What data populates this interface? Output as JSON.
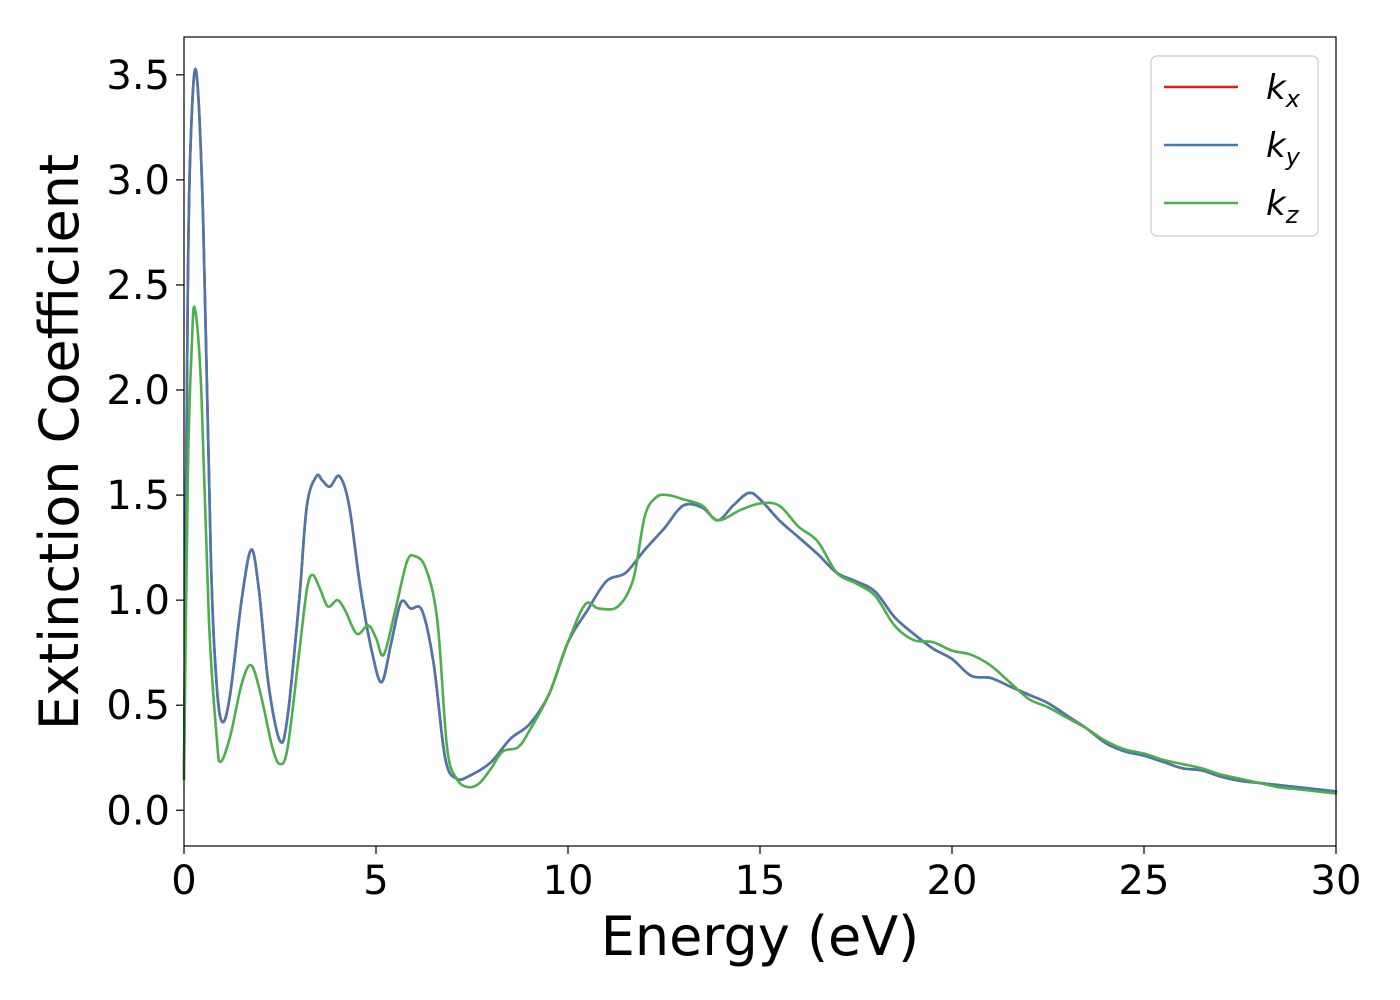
{
  "chart_data": {
    "type": "line",
    "xlabel": "Energy (eV)",
    "ylabel": "Extinction Coefficient",
    "xlim": [
      0,
      30
    ],
    "ylim": [
      -0.17,
      3.68
    ],
    "xticks": [
      0,
      5,
      10,
      15,
      20,
      25,
      30
    ],
    "xtick_labels": [
      "0",
      "5",
      "10",
      "15",
      "20",
      "25",
      "30"
    ],
    "yticks": [
      0.0,
      0.5,
      1.0,
      1.5,
      2.0,
      2.5,
      3.0,
      3.5
    ],
    "ytick_labels": [
      "0.0",
      "0.5",
      "1.0",
      "1.5",
      "2.0",
      "2.5",
      "3.0",
      "3.5"
    ],
    "grid": false,
    "legend_position": "top-right",
    "series": [
      {
        "name": "k",
        "subscript": "x",
        "color": "#e41a1c",
        "points": [
          [
            0,
            0.15
          ],
          [
            0.1,
            2.5
          ],
          [
            0.2,
            3.3
          ],
          [
            0.33,
            3.5
          ],
          [
            0.5,
            2.8
          ],
          [
            0.7,
            1.2
          ],
          [
            0.85,
            0.6
          ],
          [
            1.0,
            0.42
          ],
          [
            1.2,
            0.55
          ],
          [
            1.5,
            1.0
          ],
          [
            1.75,
            1.24
          ],
          [
            1.95,
            1.05
          ],
          [
            2.2,
            0.6
          ],
          [
            2.5,
            0.33
          ],
          [
            2.7,
            0.45
          ],
          [
            3.0,
            1.0
          ],
          [
            3.2,
            1.45
          ],
          [
            3.45,
            1.59
          ],
          [
            3.6,
            1.57
          ],
          [
            3.8,
            1.54
          ],
          [
            4.05,
            1.59
          ],
          [
            4.3,
            1.45
          ],
          [
            4.6,
            1.05
          ],
          [
            4.9,
            0.75
          ],
          [
            5.15,
            0.61
          ],
          [
            5.4,
            0.8
          ],
          [
            5.65,
            0.99
          ],
          [
            5.9,
            0.96
          ],
          [
            6.2,
            0.95
          ],
          [
            6.5,
            0.7
          ],
          [
            6.8,
            0.25
          ],
          [
            7.1,
            0.15
          ],
          [
            7.5,
            0.17
          ],
          [
            8.0,
            0.23
          ],
          [
            8.5,
            0.34
          ],
          [
            9.0,
            0.41
          ],
          [
            9.5,
            0.55
          ],
          [
            10.0,
            0.8
          ],
          [
            10.5,
            0.95
          ],
          [
            11.0,
            1.09
          ],
          [
            11.5,
            1.13
          ],
          [
            12.0,
            1.24
          ],
          [
            12.5,
            1.34
          ],
          [
            13.0,
            1.45
          ],
          [
            13.5,
            1.44
          ],
          [
            13.9,
            1.38
          ],
          [
            14.3,
            1.45
          ],
          [
            14.7,
            1.51
          ],
          [
            15.0,
            1.48
          ],
          [
            15.5,
            1.38
          ],
          [
            16.0,
            1.3
          ],
          [
            16.5,
            1.22
          ],
          [
            17.0,
            1.13
          ],
          [
            17.5,
            1.09
          ],
          [
            18.0,
            1.04
          ],
          [
            18.5,
            0.92
          ],
          [
            19.0,
            0.84
          ],
          [
            19.5,
            0.77
          ],
          [
            20.0,
            0.72
          ],
          [
            20.5,
            0.64
          ],
          [
            21.0,
            0.63
          ],
          [
            21.5,
            0.59
          ],
          [
            22.0,
            0.55
          ],
          [
            22.5,
            0.51
          ],
          [
            23.0,
            0.45
          ],
          [
            23.5,
            0.39
          ],
          [
            24.0,
            0.32
          ],
          [
            24.5,
            0.28
          ],
          [
            25.0,
            0.26
          ],
          [
            25.5,
            0.23
          ],
          [
            26.0,
            0.2
          ],
          [
            26.5,
            0.19
          ],
          [
            27.0,
            0.16
          ],
          [
            27.5,
            0.14
          ],
          [
            28.0,
            0.13
          ],
          [
            28.5,
            0.12
          ],
          [
            29.0,
            0.11
          ],
          [
            29.5,
            0.1
          ],
          [
            30.0,
            0.09
          ]
        ]
      },
      {
        "name": "k",
        "subscript": "y",
        "color": "#4a78ad",
        "points": [
          [
            0,
            0.15
          ],
          [
            0.1,
            2.5
          ],
          [
            0.2,
            3.3
          ],
          [
            0.33,
            3.5
          ],
          [
            0.5,
            2.8
          ],
          [
            0.7,
            1.2
          ],
          [
            0.85,
            0.6
          ],
          [
            1.0,
            0.42
          ],
          [
            1.2,
            0.55
          ],
          [
            1.5,
            1.0
          ],
          [
            1.75,
            1.24
          ],
          [
            1.95,
            1.05
          ],
          [
            2.2,
            0.6
          ],
          [
            2.5,
            0.33
          ],
          [
            2.7,
            0.45
          ],
          [
            3.0,
            1.0
          ],
          [
            3.2,
            1.45
          ],
          [
            3.45,
            1.59
          ],
          [
            3.6,
            1.57
          ],
          [
            3.8,
            1.54
          ],
          [
            4.05,
            1.59
          ],
          [
            4.3,
            1.45
          ],
          [
            4.6,
            1.05
          ],
          [
            4.9,
            0.75
          ],
          [
            5.15,
            0.61
          ],
          [
            5.4,
            0.8
          ],
          [
            5.65,
            0.99
          ],
          [
            5.9,
            0.96
          ],
          [
            6.2,
            0.95
          ],
          [
            6.5,
            0.7
          ],
          [
            6.8,
            0.25
          ],
          [
            7.1,
            0.15
          ],
          [
            7.5,
            0.17
          ],
          [
            8.0,
            0.23
          ],
          [
            8.5,
            0.34
          ],
          [
            9.0,
            0.41
          ],
          [
            9.5,
            0.55
          ],
          [
            10.0,
            0.8
          ],
          [
            10.5,
            0.95
          ],
          [
            11.0,
            1.09
          ],
          [
            11.5,
            1.13
          ],
          [
            12.0,
            1.24
          ],
          [
            12.5,
            1.34
          ],
          [
            13.0,
            1.45
          ],
          [
            13.5,
            1.44
          ],
          [
            13.9,
            1.38
          ],
          [
            14.3,
            1.45
          ],
          [
            14.7,
            1.51
          ],
          [
            15.0,
            1.48
          ],
          [
            15.5,
            1.38
          ],
          [
            16.0,
            1.3
          ],
          [
            16.5,
            1.22
          ],
          [
            17.0,
            1.13
          ],
          [
            17.5,
            1.09
          ],
          [
            18.0,
            1.04
          ],
          [
            18.5,
            0.92
          ],
          [
            19.0,
            0.84
          ],
          [
            19.5,
            0.77
          ],
          [
            20.0,
            0.72
          ],
          [
            20.5,
            0.64
          ],
          [
            21.0,
            0.63
          ],
          [
            21.5,
            0.59
          ],
          [
            22.0,
            0.55
          ],
          [
            22.5,
            0.51
          ],
          [
            23.0,
            0.45
          ],
          [
            23.5,
            0.39
          ],
          [
            24.0,
            0.32
          ],
          [
            24.5,
            0.28
          ],
          [
            25.0,
            0.26
          ],
          [
            25.5,
            0.23
          ],
          [
            26.0,
            0.2
          ],
          [
            26.5,
            0.19
          ],
          [
            27.0,
            0.16
          ],
          [
            27.5,
            0.14
          ],
          [
            28.0,
            0.13
          ],
          [
            28.5,
            0.12
          ],
          [
            29.0,
            0.11
          ],
          [
            29.5,
            0.1
          ],
          [
            30.0,
            0.09
          ]
        ]
      },
      {
        "name": "k",
        "subscript": "z",
        "color": "#4daf4a",
        "points": [
          [
            0,
            0.15
          ],
          [
            0.1,
            1.6
          ],
          [
            0.2,
            2.2
          ],
          [
            0.28,
            2.39
          ],
          [
            0.45,
            2.0
          ],
          [
            0.65,
            0.9
          ],
          [
            0.85,
            0.35
          ],
          [
            0.95,
            0.23
          ],
          [
            1.2,
            0.35
          ],
          [
            1.5,
            0.6
          ],
          [
            1.75,
            0.69
          ],
          [
            2.0,
            0.55
          ],
          [
            2.3,
            0.3
          ],
          [
            2.5,
            0.22
          ],
          [
            2.7,
            0.3
          ],
          [
            3.0,
            0.75
          ],
          [
            3.2,
            1.05
          ],
          [
            3.35,
            1.12
          ],
          [
            3.55,
            1.05
          ],
          [
            3.75,
            0.97
          ],
          [
            4.0,
            1.0
          ],
          [
            4.2,
            0.95
          ],
          [
            4.5,
            0.84
          ],
          [
            4.8,
            0.88
          ],
          [
            5.0,
            0.82
          ],
          [
            5.2,
            0.74
          ],
          [
            5.5,
            0.95
          ],
          [
            5.8,
            1.18
          ],
          [
            6.0,
            1.21
          ],
          [
            6.3,
            1.15
          ],
          [
            6.6,
            0.9
          ],
          [
            6.85,
            0.3
          ],
          [
            7.1,
            0.15
          ],
          [
            7.4,
            0.11
          ],
          [
            7.7,
            0.13
          ],
          [
            8.0,
            0.2
          ],
          [
            8.3,
            0.28
          ],
          [
            8.7,
            0.3
          ],
          [
            9.0,
            0.38
          ],
          [
            9.5,
            0.55
          ],
          [
            10.0,
            0.8
          ],
          [
            10.45,
            0.98
          ],
          [
            10.8,
            0.96
          ],
          [
            11.3,
            0.97
          ],
          [
            11.7,
            1.1
          ],
          [
            12.0,
            1.4
          ],
          [
            12.3,
            1.49
          ],
          [
            12.6,
            1.5
          ],
          [
            13.0,
            1.48
          ],
          [
            13.5,
            1.45
          ],
          [
            13.9,
            1.38
          ],
          [
            14.5,
            1.43
          ],
          [
            15.0,
            1.46
          ],
          [
            15.5,
            1.45
          ],
          [
            16.0,
            1.35
          ],
          [
            16.5,
            1.28
          ],
          [
            17.0,
            1.13
          ],
          [
            17.5,
            1.08
          ],
          [
            18.0,
            1.02
          ],
          [
            18.5,
            0.88
          ],
          [
            19.0,
            0.81
          ],
          [
            19.5,
            0.8
          ],
          [
            20.0,
            0.76
          ],
          [
            20.5,
            0.74
          ],
          [
            21.0,
            0.69
          ],
          [
            21.5,
            0.61
          ],
          [
            22.0,
            0.53
          ],
          [
            22.5,
            0.49
          ],
          [
            23.0,
            0.44
          ],
          [
            23.5,
            0.39
          ],
          [
            24.0,
            0.33
          ],
          [
            24.5,
            0.29
          ],
          [
            25.0,
            0.27
          ],
          [
            25.5,
            0.24
          ],
          [
            26.0,
            0.22
          ],
          [
            26.5,
            0.2
          ],
          [
            27.0,
            0.17
          ],
          [
            27.5,
            0.15
          ],
          [
            28.0,
            0.13
          ],
          [
            28.5,
            0.11
          ],
          [
            29.0,
            0.1
          ],
          [
            29.5,
            0.09
          ],
          [
            30.0,
            0.08
          ]
        ]
      }
    ]
  }
}
